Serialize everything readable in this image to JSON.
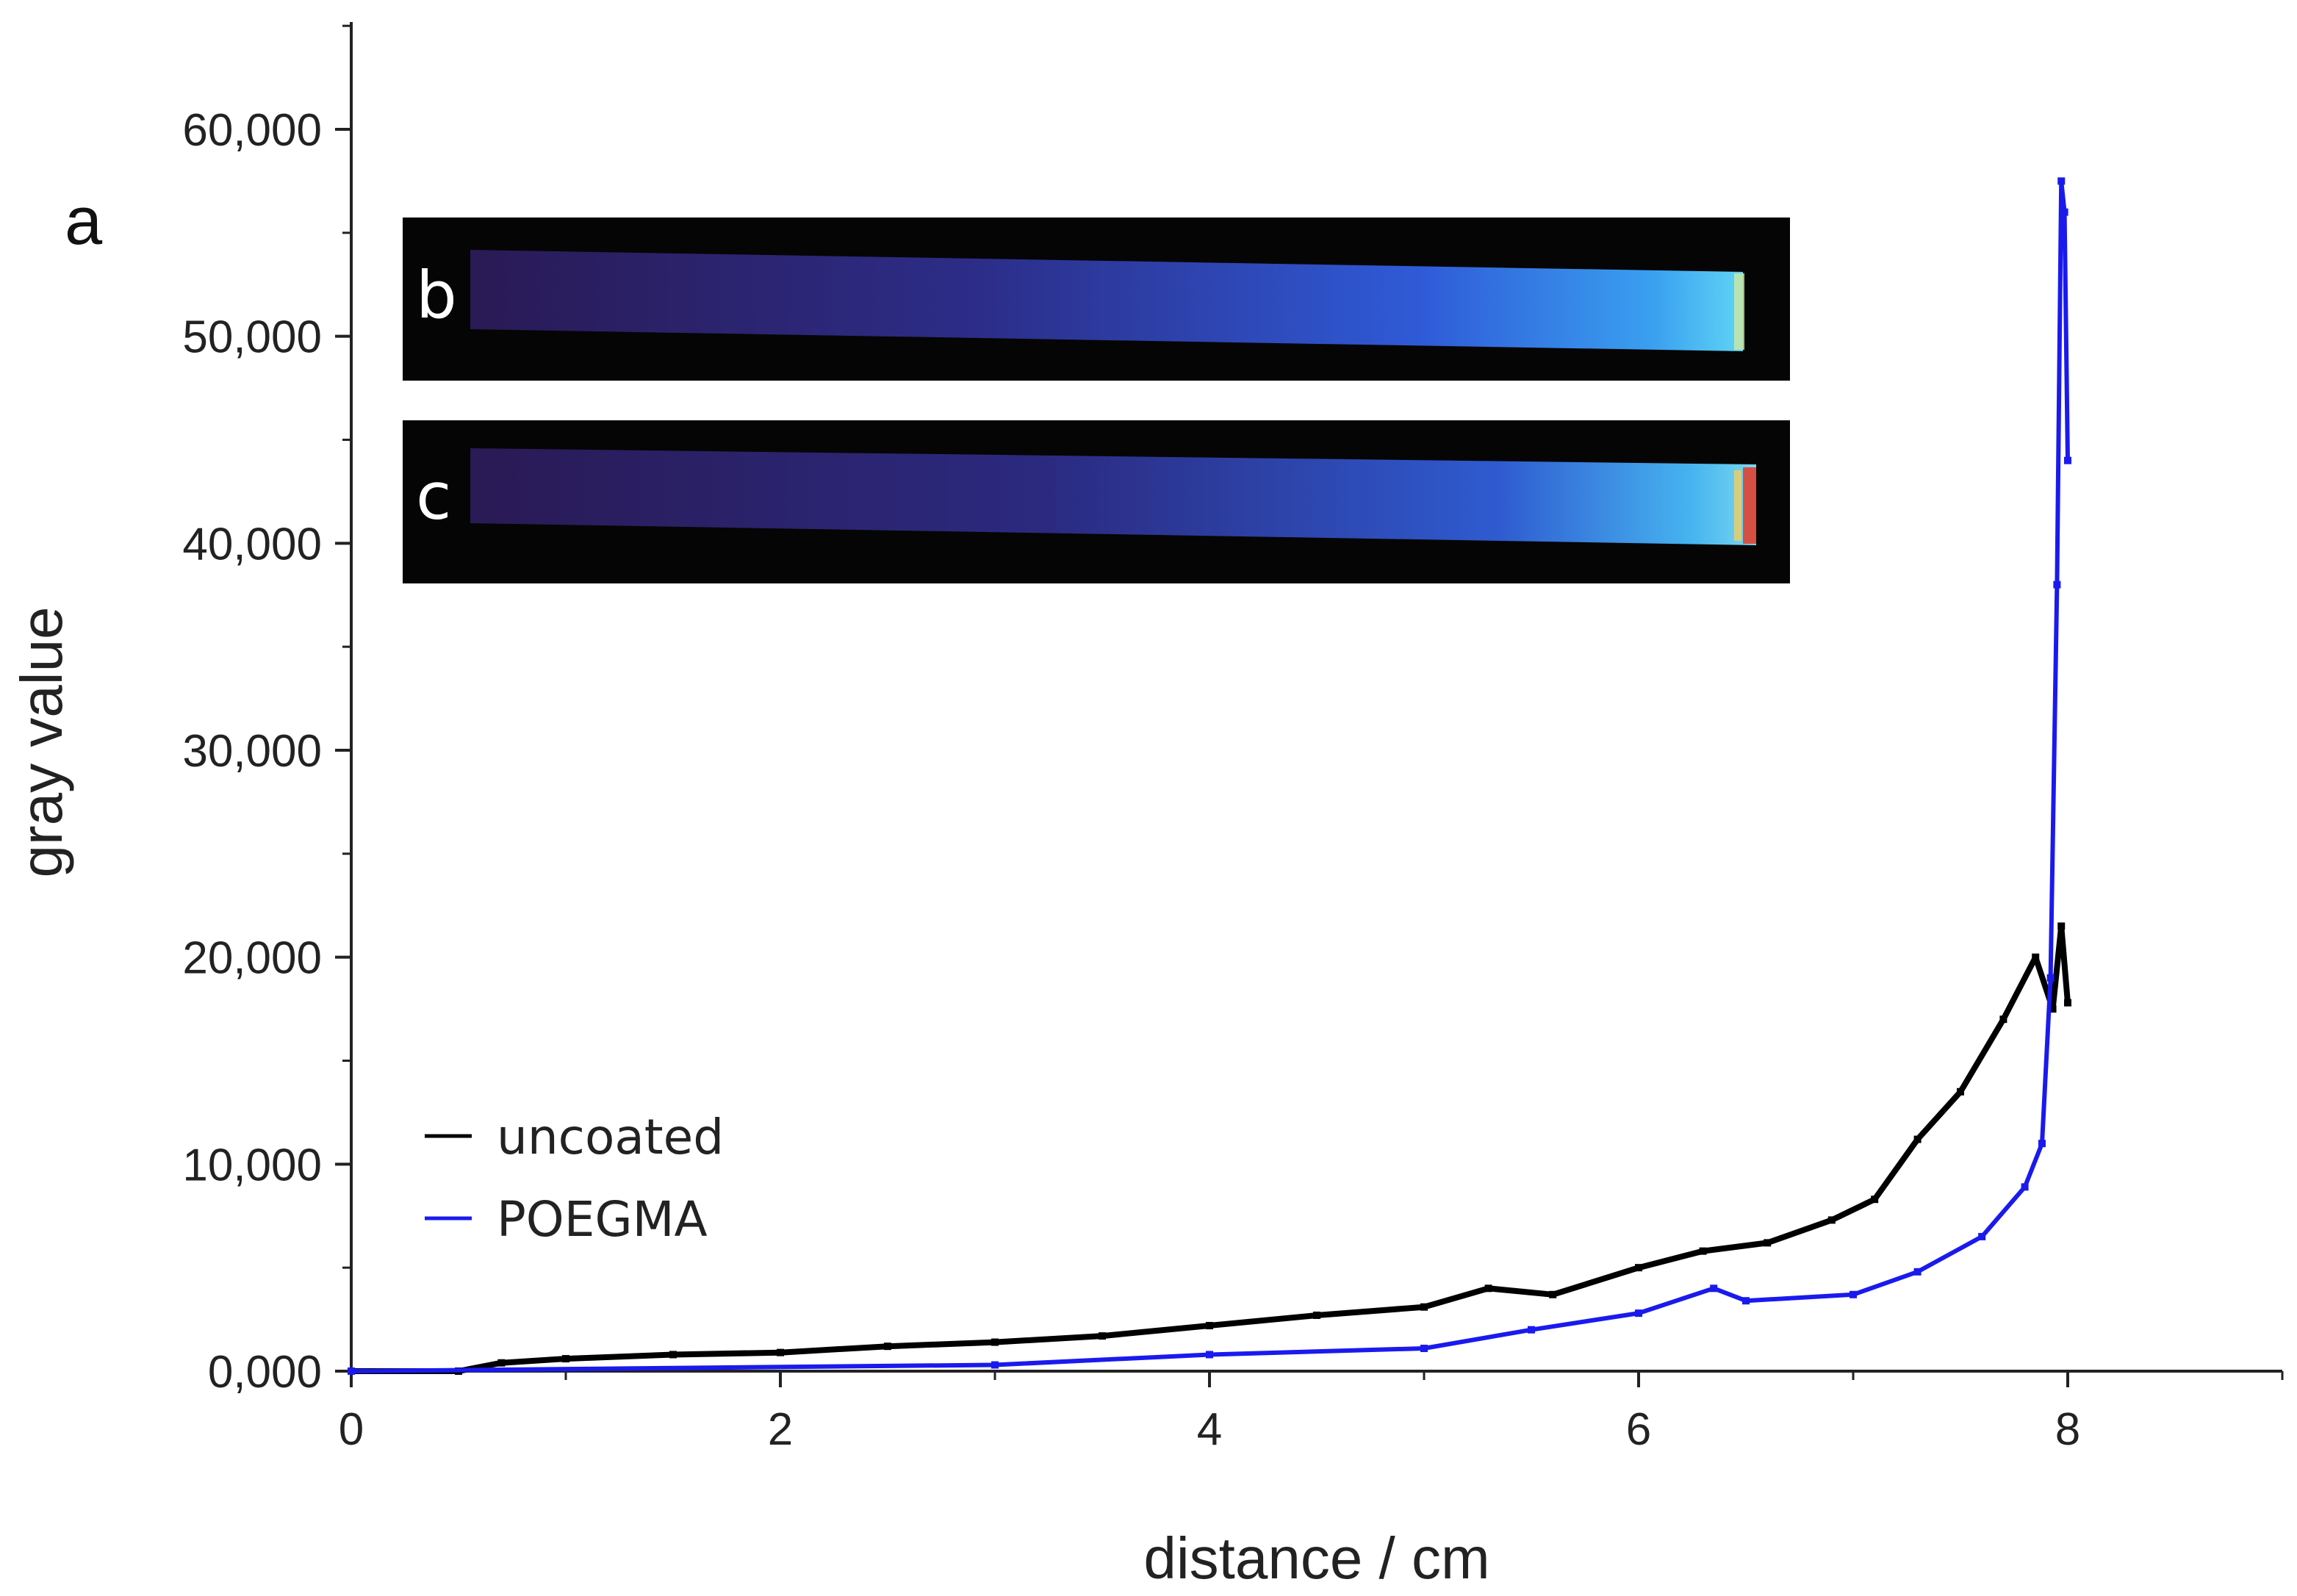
{
  "chart_data": {
    "type": "line",
    "panel_label": "a",
    "xlabel": "distance / cm",
    "ylabel": "gray value",
    "xlim": [
      0,
      9
    ],
    "ylim": [
      0,
      65000
    ],
    "x_ticks": [
      0,
      2,
      4,
      6,
      8
    ],
    "x_tick_labels": [
      "0",
      "2",
      "4",
      "6",
      "8"
    ],
    "y_ticks": [
      0,
      10000,
      20000,
      30000,
      40000,
      50000,
      60000
    ],
    "y_tick_labels": [
      "0,000",
      "10,000",
      "20,000",
      "30,000",
      "40,000",
      "50,000",
      "60,000"
    ],
    "legend_position": "bottom-left",
    "series": [
      {
        "name": "uncoated",
        "color": "#000000",
        "x": [
          0,
          0.5,
          0.7,
          1.0,
          1.5,
          2.0,
          2.5,
          3.0,
          3.5,
          4.0,
          4.5,
          5.0,
          5.3,
          5.6,
          6.0,
          6.3,
          6.6,
          6.9,
          7.1,
          7.3,
          7.5,
          7.7,
          7.85,
          7.93,
          7.97,
          8.0
        ],
        "values": [
          0,
          0,
          400,
          600,
          800,
          900,
          1200,
          1400,
          1700,
          2200,
          2700,
          3100,
          4000,
          3700,
          5000,
          5800,
          6200,
          7300,
          8300,
          11200,
          13500,
          17000,
          20000,
          17500,
          21500,
          17800
        ]
      },
      {
        "name": "POEGMA",
        "color": "#1a1aee",
        "x": [
          0,
          3.0,
          4.0,
          5.0,
          5.5,
          6.0,
          6.35,
          6.5,
          7.0,
          7.3,
          7.6,
          7.8,
          7.88,
          7.92,
          7.95,
          7.97,
          7.985,
          8.0
        ],
        "values": [
          0,
          300,
          800,
          1100,
          2000,
          2800,
          4000,
          3400,
          3700,
          4800,
          6500,
          8900,
          11000,
          19000,
          38000,
          57500,
          56000,
          44000
        ]
      }
    ]
  },
  "insets": [
    {
      "label": "b",
      "description_color": "#2f5bd8"
    },
    {
      "label": "c",
      "description_color": "#2f5bd8"
    }
  ]
}
